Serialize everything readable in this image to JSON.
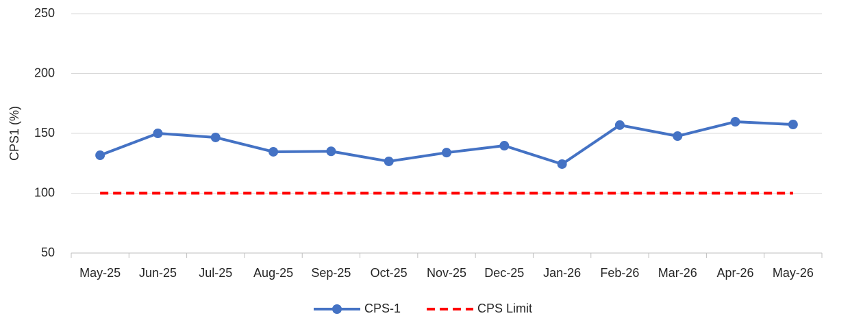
{
  "chart_data": {
    "type": "line",
    "y_label": "CPS1 (%)",
    "categories": [
      "May-25",
      "Jun-25",
      "Jul-25",
      "Aug-25",
      "Sep-25",
      "Oct-25",
      "Nov-25",
      "Dec-25",
      "Jan-26",
      "Feb-26",
      "Mar-26",
      "Apr-26",
      "May-26"
    ],
    "series": [
      {
        "name": "CPS-1",
        "color": "#4472c4",
        "markers": true,
        "dashed": false,
        "values": [
          131.7,
          150,
          146.6,
          134.6,
          135,
          126.6,
          133.9,
          139.7,
          124.3,
          156.9,
          147.7,
          159.7,
          157.4
        ]
      },
      {
        "name": "CPS Limit",
        "color": "#ff0000",
        "markers": false,
        "dashed": true,
        "values": [
          100,
          100,
          100,
          100,
          100,
          100,
          100,
          100,
          100,
          100,
          100,
          100,
          100
        ]
      }
    ],
    "ylim": [
      50,
      250
    ],
    "yticks": [
      50,
      100,
      150,
      200,
      250
    ],
    "grid": true,
    "legend": "bottom"
  }
}
